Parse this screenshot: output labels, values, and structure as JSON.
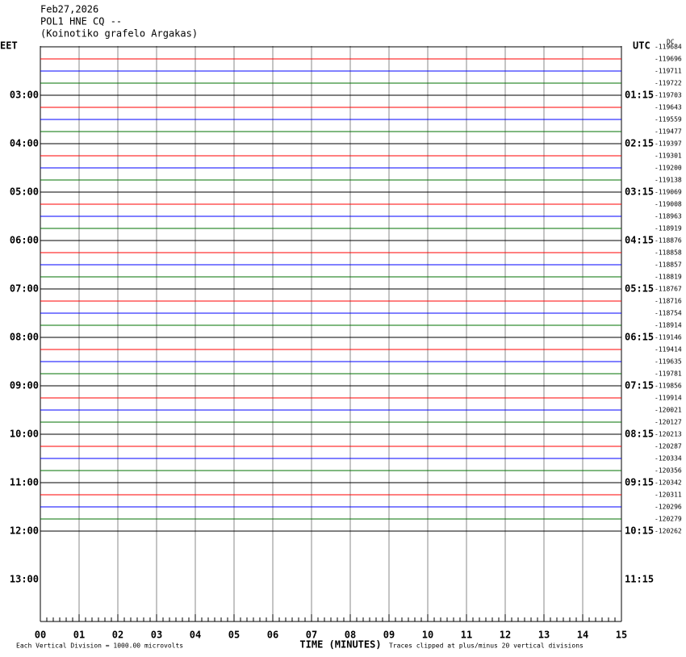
{
  "header": {
    "date": "Feb27,2026",
    "station": "POL1 HNE CQ --",
    "location": "(Koinotiko grafelo Argakas)"
  },
  "corner": "DC",
  "left_axis": {
    "title": "EET",
    "labels": [
      "03:00",
      "04:00",
      "05:00",
      "06:00",
      "07:00",
      "08:00",
      "09:00",
      "10:00",
      "11:00",
      "12:00",
      "13:00"
    ]
  },
  "right_axis": {
    "title": "UTC",
    "labels": [
      "01:15",
      "02:15",
      "03:15",
      "04:15",
      "05:15",
      "06:15",
      "07:15",
      "08:15",
      "09:15",
      "10:15",
      "11:15"
    ]
  },
  "traces": {
    "colors": [
      "#000000",
      "#ff0000",
      "#0000ff",
      "#007000"
    ],
    "offsets": [
      -119684,
      -119696,
      -119711,
      -119722,
      -119703,
      -119643,
      -119559,
      -119477,
      -119397,
      -119301,
      -119200,
      -119138,
      -119069,
      -119008,
      -118963,
      -118919,
      -118876,
      -118858,
      -118857,
      -118819,
      -118767,
      -118716,
      -118754,
      -118914,
      -119146,
      -119414,
      -119635,
      -119781,
      -119856,
      -119914,
      -120021,
      -120127,
      -120213,
      -120287,
      -120334,
      -120356,
      -120342,
      -120311,
      -120296,
      -120279,
      -120262
    ]
  },
  "x_axis": {
    "title": "TIME (MINUTES)",
    "labels": [
      "00",
      "01",
      "02",
      "03",
      "04",
      "05",
      "06",
      "07",
      "08",
      "09",
      "10",
      "11",
      "12",
      "13",
      "14",
      "15"
    ]
  },
  "footer": {
    "scale": "Each Vertical Division = 1000.00 microvolts",
    "clip": "Traces clipped at plus/minus 20 vertical divisions"
  }
}
